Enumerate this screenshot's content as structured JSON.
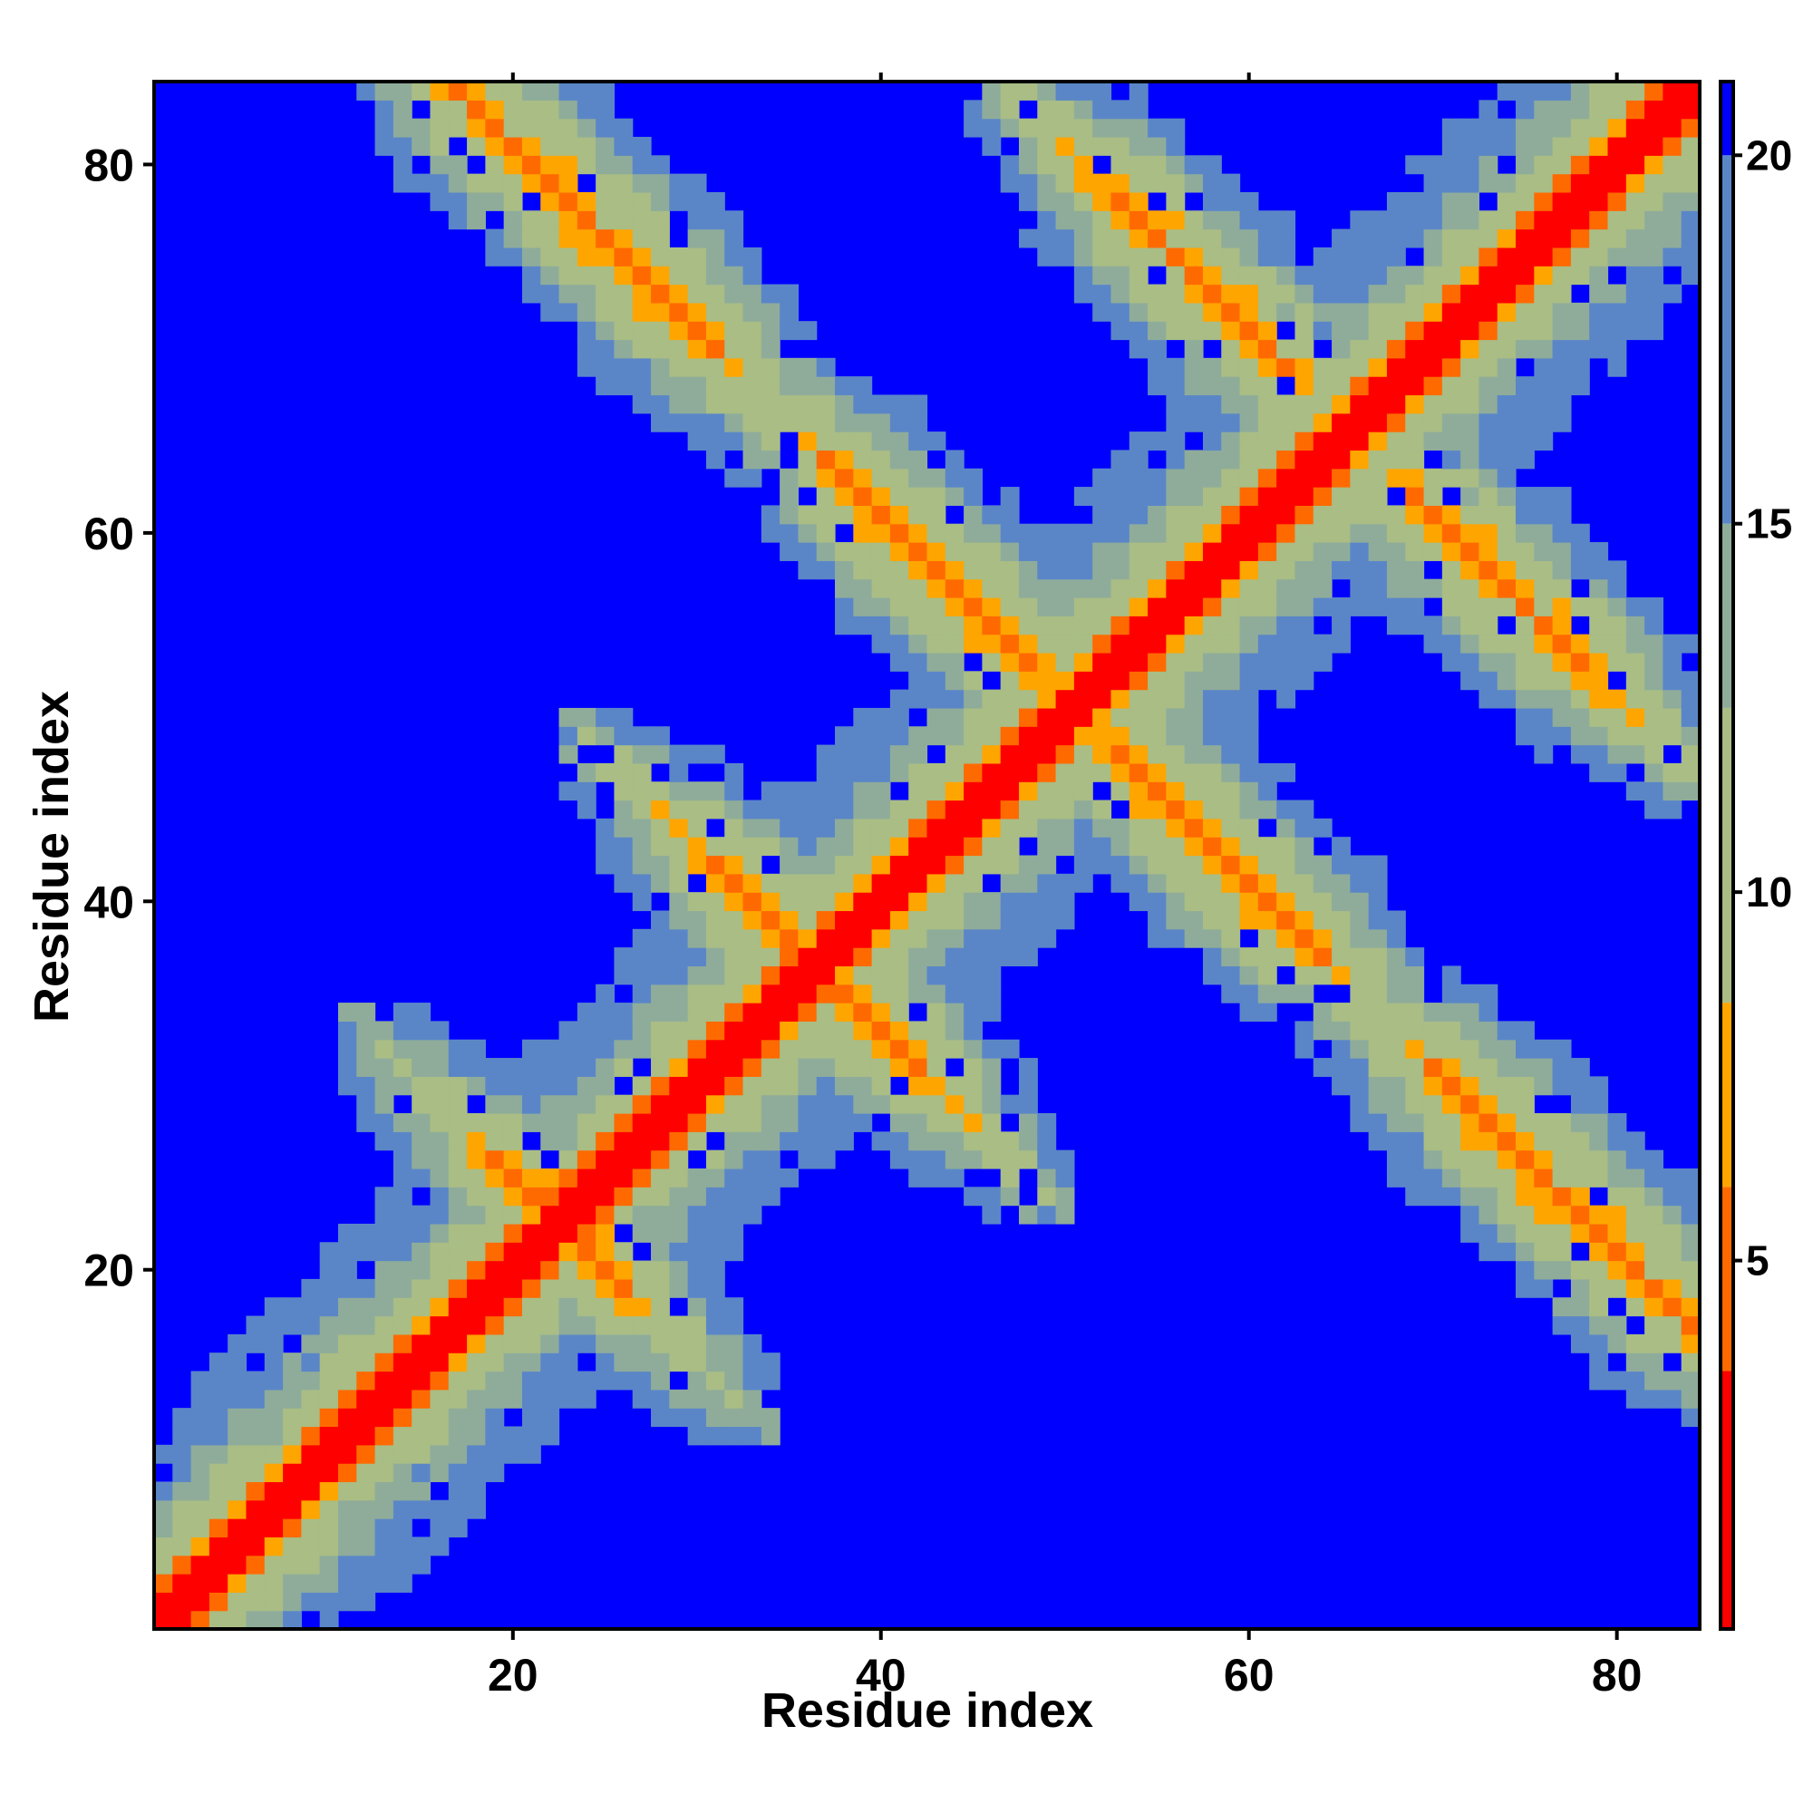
{
  "chart_data": {
    "type": "heatmap",
    "title": "",
    "xlabel": "Residue index",
    "ylabel": "Residue index",
    "n_residues": 84,
    "xlim": [
      1,
      84
    ],
    "ylim": [
      1,
      84
    ],
    "x_ticks": [
      20,
      40,
      60,
      80
    ],
    "y_ticks": [
      20,
      40,
      60,
      80
    ],
    "colorbar": {
      "ticks": [
        5,
        10,
        15,
        20
      ],
      "range": [
        0,
        21
      ],
      "placement": "right"
    },
    "cutoff_value": 21,
    "colors": {
      "background": "#0000ff",
      "diagonal": "#ff0000",
      "near": "#ff6a00",
      "orange": "#ffa500",
      "mid": "#a9bd85",
      "far": "#5a86c8",
      "frame": "#000000"
    },
    "contact_bands": [
      {
        "type": "diagonal",
        "offset": 0,
        "width": 3
      },
      {
        "type": "antidiagonal",
        "sum": 101,
        "i_range": [
          18,
          30
        ],
        "width": 2
      },
      {
        "type": "antidiagonal",
        "sum": 101,
        "i_range": [
          55,
          63
        ],
        "width": 2
      },
      {
        "type": "antidiagonal",
        "sum": 73,
        "i_range": [
          32,
          41
        ],
        "width": 2
      },
      {
        "type": "antidiagonal",
        "sum": 101,
        "i_range": [
          38,
          48
        ],
        "width": 2
      },
      {
        "type": "antidiagonal",
        "sum": 131,
        "i_range": [
          53,
          61
        ],
        "width": 2
      },
      {
        "type": "antidiagonal",
        "sum": 101,
        "i_range": [
          71,
          82
        ],
        "width": 2
      },
      {
        "type": "antidiagonal",
        "sum": 45,
        "i_range": [
          20,
          25
        ],
        "width": 2
      }
    ]
  }
}
